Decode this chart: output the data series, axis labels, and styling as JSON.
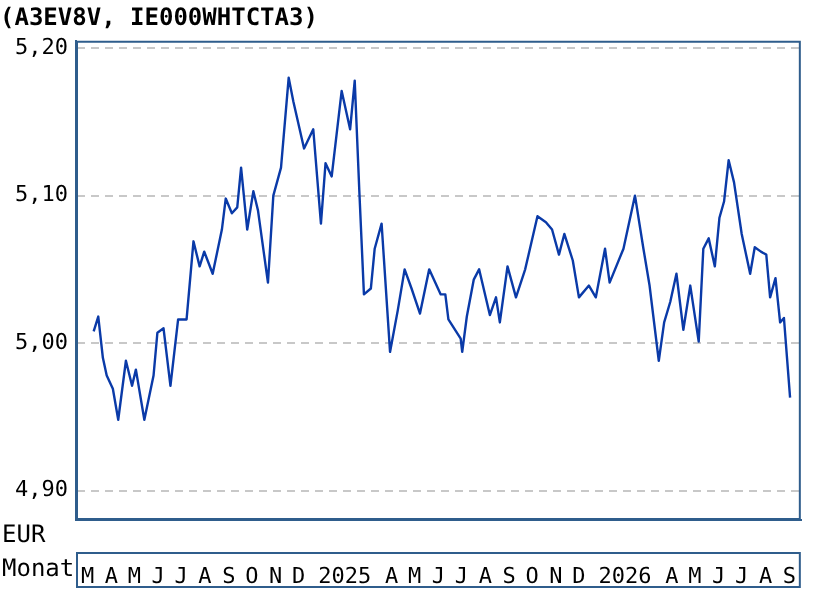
{
  "chart_data": {
    "type": "line",
    "title": "(A3EV8V, IE000WHTCTA3)",
    "xlabel": "Monat",
    "ylabel": "EUR",
    "x": [
      "2024-03-24",
      "2024-03-30",
      "2024-04-05",
      "2024-04-10",
      "2024-04-18",
      "2024-04-25",
      "2024-05-05",
      "2024-05-13",
      "2024-05-18",
      "2024-05-29",
      "2024-06-10",
      "2024-06-15",
      "2024-06-23",
      "2024-07-02",
      "2024-07-12",
      "2024-07-23",
      "2024-08-01",
      "2024-08-09",
      "2024-08-15",
      "2024-08-26",
      "2024-09-07",
      "2024-09-12",
      "2024-09-20",
      "2024-09-27",
      "2024-10-02",
      "2024-10-10",
      "2024-10-18",
      "2024-10-24",
      "2024-11-06",
      "2024-11-13",
      "2024-11-23",
      "2024-12-03",
      "2024-12-09",
      "2024-12-23",
      "2025-01-04",
      "2025-01-14",
      "2025-01-20",
      "2025-01-28",
      "2025-02-10",
      "2025-02-21",
      "2025-02-27",
      "2025-03-05",
      "2025-03-11",
      "2025-03-20",
      "2025-03-25",
      "2025-04-03",
      "2025-04-14",
      "2025-04-24",
      "2025-05-03",
      "2025-05-12",
      "2025-05-23",
      "2025-06-04",
      "2025-06-19",
      "2025-06-25",
      "2025-06-29",
      "2025-07-15",
      "2025-07-17",
      "2025-07-23",
      "2025-08-01",
      "2025-08-08",
      "2025-08-22",
      "2025-08-30",
      "2025-09-04",
      "2025-09-14",
      "2025-09-25",
      "2025-10-07",
      "2025-10-23",
      "2025-11-03",
      "2025-11-11",
      "2025-11-20",
      "2025-11-27",
      "2025-12-08",
      "2025-12-16",
      "2025-12-29",
      "2026-01-07",
      "2026-01-19",
      "2026-01-25",
      "2026-02-12",
      "2026-02-27",
      "2026-03-10",
      "2026-03-18",
      "2026-03-30",
      "2026-04-06",
      "2026-04-14",
      "2026-04-22",
      "2026-05-01",
      "2026-05-10",
      "2026-05-21",
      "2026-05-27",
      "2026-06-03",
      "2026-06-11",
      "2026-06-17",
      "2026-06-23",
      "2026-06-29",
      "2026-07-06",
      "2026-07-16",
      "2026-07-27",
      "2026-08-02",
      "2026-08-10",
      "2026-08-17",
      "2026-08-22",
      "2026-08-29",
      "2026-09-04",
      "2026-09-09",
      "2026-09-13",
      "2026-09-17"
    ],
    "series": [
      {
        "color": "#0a3aa8",
        "values": [
          5.008,
          5.018,
          4.99,
          4.978,
          4.969,
          4.948,
          4.988,
          4.971,
          4.982,
          4.948,
          4.978,
          5.007,
          5.01,
          4.971,
          5.016,
          5.016,
          5.069,
          5.052,
          5.062,
          5.047,
          5.077,
          5.098,
          5.088,
          5.092,
          5.119,
          5.077,
          5.103,
          5.09,
          5.041,
          5.1,
          5.119,
          5.18,
          5.164,
          5.132,
          5.145,
          5.081,
          5.122,
          5.113,
          5.171,
          5.145,
          5.178,
          5.103,
          5.033,
          5.037,
          5.064,
          5.081,
          4.994,
          5.022,
          5.05,
          5.037,
          5.02,
          5.05,
          5.033,
          5.033,
          5.016,
          5.003,
          4.994,
          5.018,
          5.043,
          5.05,
          5.019,
          5.031,
          5.014,
          5.052,
          5.031,
          5.05,
          5.086,
          5.082,
          5.077,
          5.06,
          5.074,
          5.056,
          5.031,
          5.039,
          5.031,
          5.064,
          5.041,
          5.064,
          5.1,
          5.064,
          5.039,
          4.988,
          5.014,
          5.028,
          5.047,
          5.009,
          5.039,
          5.001,
          5.064,
          5.071,
          5.052,
          5.085,
          5.096,
          5.124,
          5.109,
          5.074,
          5.047,
          5.065,
          5.062,
          5.06,
          5.031,
          5.044,
          5.014,
          5.017,
          4.99,
          4.963
        ]
      }
    ],
    "xlim": [
      "2024-03-01",
      "2026-10-01"
    ],
    "xticks": [
      {
        "value": "2024-03-16",
        "label": "M"
      },
      {
        "value": "2024-04-16",
        "label": "A"
      },
      {
        "value": "2024-05-16",
        "label": "M"
      },
      {
        "value": "2024-06-16",
        "label": "J"
      },
      {
        "value": "2024-07-16",
        "label": "J"
      },
      {
        "value": "2024-08-16",
        "label": "A"
      },
      {
        "value": "2024-09-16",
        "label": "S"
      },
      {
        "value": "2024-10-16",
        "label": "O"
      },
      {
        "value": "2024-11-16",
        "label": "N"
      },
      {
        "value": "2024-12-16",
        "label": "D"
      },
      {
        "value": "2025-02-14",
        "label": "2025"
      },
      {
        "value": "2025-04-16",
        "label": "A"
      },
      {
        "value": "2025-05-16",
        "label": "M"
      },
      {
        "value": "2025-06-16",
        "label": "J"
      },
      {
        "value": "2025-07-16",
        "label": "J"
      },
      {
        "value": "2025-08-16",
        "label": "A"
      },
      {
        "value": "2025-09-16",
        "label": "S"
      },
      {
        "value": "2025-10-16",
        "label": "O"
      },
      {
        "value": "2025-11-16",
        "label": "N"
      },
      {
        "value": "2025-12-16",
        "label": "D"
      },
      {
        "value": "2026-02-14",
        "label": "2026"
      },
      {
        "value": "2026-04-16",
        "label": "A"
      },
      {
        "value": "2026-05-16",
        "label": "M"
      },
      {
        "value": "2026-06-16",
        "label": "J"
      },
      {
        "value": "2026-07-16",
        "label": "J"
      },
      {
        "value": "2026-08-16",
        "label": "A"
      },
      {
        "value": "2026-09-16",
        "label": "S"
      }
    ],
    "ylim": [
      4.88,
      5.205
    ],
    "yticks": [
      {
        "value": 4.9,
        "label": "4,90"
      },
      {
        "value": 5.0,
        "label": "5,00"
      },
      {
        "value": 5.1,
        "label": "5,10"
      },
      {
        "value": 5.2,
        "label": "5,20"
      }
    ],
    "grid": "y",
    "legend": false,
    "marker": "none",
    "line_style": "solid"
  }
}
